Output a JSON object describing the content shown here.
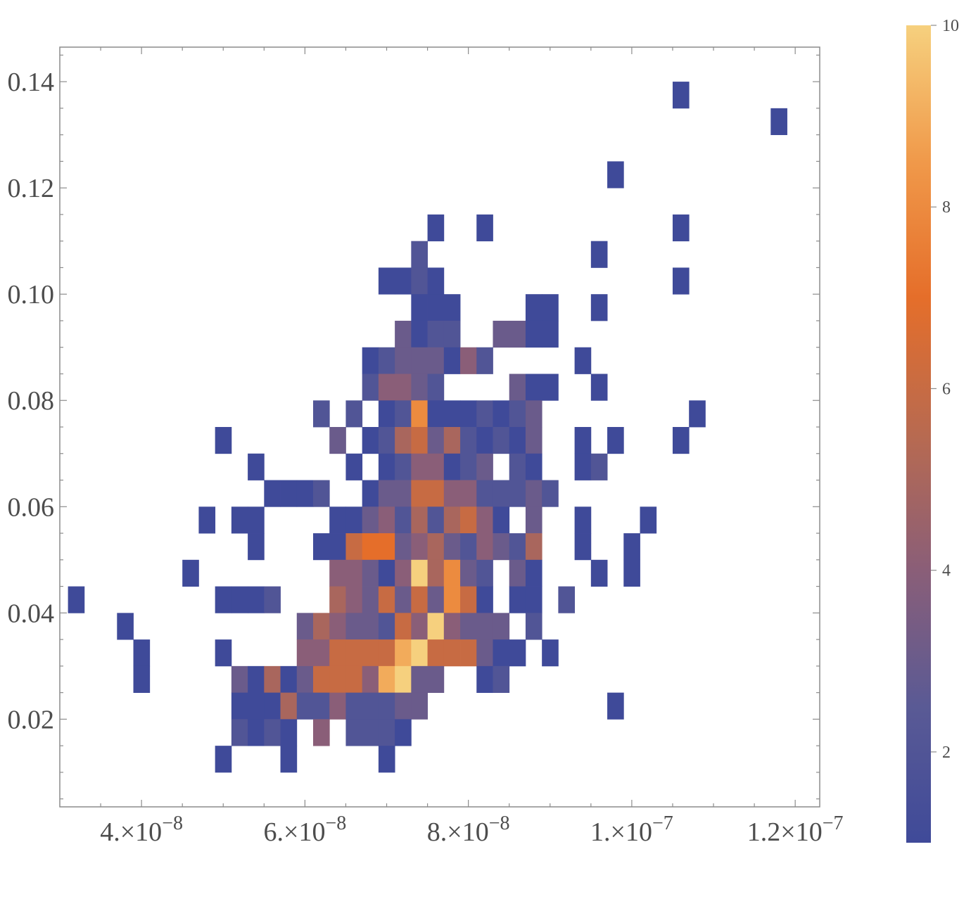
{
  "chart_data": {
    "type": "heatmap",
    "title": "",
    "xlabel": "",
    "ylabel": "",
    "xlim": [
      3e-08,
      1.23e-07
    ],
    "ylim": [
      0.0035,
      0.1465
    ],
    "bin_width": {
      "x": 2e-09,
      "y": 0.005
    },
    "x_ticks": [
      4e-08,
      6e-08,
      8e-08,
      1e-07,
      1.2e-07
    ],
    "x_tick_labels": [
      {
        "mantissa": "4.",
        "exp": "-8"
      },
      {
        "mantissa": "6.",
        "exp": "-8"
      },
      {
        "mantissa": "8.",
        "exp": "-8"
      },
      {
        "mantissa": "1.",
        "exp": "-7"
      },
      {
        "mantissa": "1.2",
        "exp": "-7"
      }
    ],
    "y_ticks": [
      0.02,
      0.04,
      0.06,
      0.08,
      0.1,
      0.12,
      0.14
    ],
    "y_tick_labels": [
      "0.02",
      "0.04",
      "0.06",
      "0.08",
      "0.10",
      "0.12",
      "0.14"
    ],
    "colorbar": {
      "min": 1,
      "max": 10,
      "ticks": [
        2,
        4,
        6,
        8,
        10
      ],
      "tick_labels": [
        "2",
        "4",
        "6",
        "8",
        "10"
      ],
      "colors": [
        "#3f4a99",
        "#5a5a95",
        "#8a5e78",
        "#b86a50",
        "#e56e2a",
        "#f0994a",
        "#f6d07e"
      ]
    },
    "bins": [
      [
        1.06e-07,
        0.1375,
        1
      ],
      [
        1.18e-07,
        0.1325,
        1
      ],
      [
        9.8e-08,
        0.1225,
        1
      ],
      [
        8.2e-08,
        0.1125,
        1
      ],
      [
        1.06e-07,
        0.1125,
        1
      ],
      [
        7.6e-08,
        0.1125,
        1
      ],
      [
        7.4e-08,
        0.1075,
        2
      ],
      [
        9.6e-08,
        0.1075,
        1
      ],
      [
        7e-08,
        0.1025,
        1
      ],
      [
        7.2e-08,
        0.1025,
        1
      ],
      [
        7.4e-08,
        0.1025,
        2
      ],
      [
        7.6e-08,
        0.1025,
        1
      ],
      [
        1.06e-07,
        0.1025,
        1
      ],
      [
        7.4e-08,
        0.0975,
        1
      ],
      [
        7.6e-08,
        0.0975,
        1
      ],
      [
        7.8e-08,
        0.0975,
        1
      ],
      [
        8.8e-08,
        0.0975,
        1
      ],
      [
        9e-08,
        0.0975,
        1
      ],
      [
        9.6e-08,
        0.0975,
        1
      ],
      [
        7.2e-08,
        0.0925,
        3
      ],
      [
        7.4e-08,
        0.0925,
        1
      ],
      [
        7.6e-08,
        0.0925,
        2
      ],
      [
        7.8e-08,
        0.0925,
        2
      ],
      [
        8.4e-08,
        0.0925,
        3
      ],
      [
        8.6e-08,
        0.0925,
        3
      ],
      [
        8.8e-08,
        0.0925,
        1
      ],
      [
        9e-08,
        0.0925,
        1
      ],
      [
        6.8e-08,
        0.0875,
        1
      ],
      [
        7e-08,
        0.0875,
        2
      ],
      [
        7.2e-08,
        0.0875,
        3
      ],
      [
        7.4e-08,
        0.0875,
        3
      ],
      [
        7.6e-08,
        0.0875,
        3
      ],
      [
        7.8e-08,
        0.0875,
        1
      ],
      [
        8e-08,
        0.0875,
        4
      ],
      [
        8.2e-08,
        0.0875,
        2
      ],
      [
        9.4e-08,
        0.0875,
        1
      ],
      [
        6.8e-08,
        0.0825,
        2
      ],
      [
        7e-08,
        0.0825,
        4
      ],
      [
        7.2e-08,
        0.0825,
        4
      ],
      [
        7.4e-08,
        0.0825,
        3
      ],
      [
        7.6e-08,
        0.0825,
        2
      ],
      [
        8.6e-08,
        0.0825,
        3
      ],
      [
        8.8e-08,
        0.0825,
        1
      ],
      [
        9e-08,
        0.0825,
        1
      ],
      [
        9.6e-08,
        0.0825,
        1
      ],
      [
        6.2e-08,
        0.0775,
        2
      ],
      [
        6.6e-08,
        0.0775,
        2
      ],
      [
        7e-08,
        0.0775,
        1
      ],
      [
        7.2e-08,
        0.0775,
        2
      ],
      [
        7.4e-08,
        0.0775,
        8
      ],
      [
        7.6e-08,
        0.0775,
        1
      ],
      [
        7.8e-08,
        0.0775,
        1
      ],
      [
        8e-08,
        0.0775,
        1
      ],
      [
        8.2e-08,
        0.0775,
        2
      ],
      [
        8.4e-08,
        0.0775,
        1
      ],
      [
        8.6e-08,
        0.0775,
        2
      ],
      [
        8.8e-08,
        0.0775,
        3
      ],
      [
        1.08e-07,
        0.0775,
        1
      ],
      [
        5e-08,
        0.0725,
        1
      ],
      [
        6.4e-08,
        0.0725,
        3
      ],
      [
        6.8e-08,
        0.0725,
        1
      ],
      [
        7e-08,
        0.0725,
        2
      ],
      [
        7.2e-08,
        0.0725,
        5
      ],
      [
        7.4e-08,
        0.0725,
        6
      ],
      [
        7.6e-08,
        0.0725,
        3
      ],
      [
        7.8e-08,
        0.0725,
        5
      ],
      [
        8e-08,
        0.0725,
        2
      ],
      [
        8.2e-08,
        0.0725,
        1
      ],
      [
        8.4e-08,
        0.0725,
        2
      ],
      [
        8.6e-08,
        0.0725,
        1
      ],
      [
        8.8e-08,
        0.0725,
        3
      ],
      [
        9.4e-08,
        0.0725,
        1
      ],
      [
        9.8e-08,
        0.0725,
        1
      ],
      [
        1.06e-07,
        0.0725,
        1
      ],
      [
        5.4e-08,
        0.0675,
        1
      ],
      [
        6.6e-08,
        0.0675,
        1
      ],
      [
        7e-08,
        0.0675,
        1
      ],
      [
        7.2e-08,
        0.0675,
        2
      ],
      [
        7.4e-08,
        0.0675,
        4
      ],
      [
        7.6e-08,
        0.0675,
        4
      ],
      [
        7.8e-08,
        0.0675,
        1
      ],
      [
        8e-08,
        0.0675,
        2
      ],
      [
        8.2e-08,
        0.0675,
        3
      ],
      [
        8.6e-08,
        0.0675,
        2
      ],
      [
        8.8e-08,
        0.0675,
        1
      ],
      [
        9.4e-08,
        0.0675,
        1
      ],
      [
        9.6e-08,
        0.0675,
        2
      ],
      [
        5.6e-08,
        0.0625,
        1
      ],
      [
        5.8e-08,
        0.0625,
        1
      ],
      [
        6e-08,
        0.0625,
        1
      ],
      [
        6.2e-08,
        0.0625,
        2
      ],
      [
        6.8e-08,
        0.0625,
        1
      ],
      [
        7e-08,
        0.0625,
        3
      ],
      [
        7.2e-08,
        0.0625,
        3
      ],
      [
        7.4e-08,
        0.0625,
        6
      ],
      [
        7.6e-08,
        0.0625,
        6
      ],
      [
        7.8e-08,
        0.0625,
        4
      ],
      [
        8e-08,
        0.0625,
        4
      ],
      [
        8.2e-08,
        0.0625,
        2
      ],
      [
        8.4e-08,
        0.0625,
        2
      ],
      [
        8.6e-08,
        0.0625,
        2
      ],
      [
        8.8e-08,
        0.0625,
        3
      ],
      [
        9e-08,
        0.0625,
        2
      ],
      [
        4.8e-08,
        0.0575,
        1
      ],
      [
        5.2e-08,
        0.0575,
        1
      ],
      [
        5.4e-08,
        0.0575,
        1
      ],
      [
        6.4e-08,
        0.0575,
        1
      ],
      [
        6.6e-08,
        0.0575,
        1
      ],
      [
        6.8e-08,
        0.0575,
        3
      ],
      [
        7e-08,
        0.0575,
        4
      ],
      [
        7.2e-08,
        0.0575,
        2
      ],
      [
        7.4e-08,
        0.0575,
        5
      ],
      [
        7.6e-08,
        0.0575,
        2
      ],
      [
        7.8e-08,
        0.0575,
        5
      ],
      [
        8e-08,
        0.0575,
        6
      ],
      [
        8.2e-08,
        0.0575,
        4
      ],
      [
        8.4e-08,
        0.0575,
        1
      ],
      [
        8.8e-08,
        0.0575,
        3
      ],
      [
        9.4e-08,
        0.0575,
        1
      ],
      [
        1.02e-07,
        0.0575,
        1
      ],
      [
        5.4e-08,
        0.0525,
        1
      ],
      [
        6.2e-08,
        0.0525,
        1
      ],
      [
        6.4e-08,
        0.0525,
        1
      ],
      [
        6.6e-08,
        0.0525,
        6
      ],
      [
        6.8e-08,
        0.0525,
        7
      ],
      [
        7e-08,
        0.0525,
        7
      ],
      [
        7.2e-08,
        0.0525,
        3
      ],
      [
        7.4e-08,
        0.0525,
        4
      ],
      [
        7.6e-08,
        0.0525,
        5
      ],
      [
        7.8e-08,
        0.0525,
        3
      ],
      [
        8e-08,
        0.0525,
        2
      ],
      [
        8.2e-08,
        0.0525,
        4
      ],
      [
        8.4e-08,
        0.0525,
        3
      ],
      [
        8.6e-08,
        0.0525,
        2
      ],
      [
        8.8e-08,
        0.0525,
        5
      ],
      [
        9.4e-08,
        0.0525,
        1
      ],
      [
        1e-07,
        0.0525,
        1
      ],
      [
        4.6e-08,
        0.0475,
        1
      ],
      [
        6.4e-08,
        0.0475,
        4
      ],
      [
        6.6e-08,
        0.0475,
        4
      ],
      [
        6.8e-08,
        0.0475,
        3
      ],
      [
        7e-08,
        0.0475,
        1
      ],
      [
        7.2e-08,
        0.0475,
        4
      ],
      [
        7.4e-08,
        0.0475,
        10
      ],
      [
        7.6e-08,
        0.0475,
        5
      ],
      [
        7.8e-08,
        0.0475,
        8
      ],
      [
        8e-08,
        0.0475,
        3
      ],
      [
        8.2e-08,
        0.0475,
        2
      ],
      [
        8.6e-08,
        0.0475,
        3
      ],
      [
        8.8e-08,
        0.0475,
        1
      ],
      [
        9.6e-08,
        0.0475,
        1
      ],
      [
        1e-07,
        0.0475,
        1
      ],
      [
        3.2e-08,
        0.0425,
        1
      ],
      [
        5e-08,
        0.0425,
        1
      ],
      [
        5.2e-08,
        0.0425,
        1
      ],
      [
        5.4e-08,
        0.0425,
        1
      ],
      [
        5.6e-08,
        0.0425,
        2
      ],
      [
        6.4e-08,
        0.0425,
        5
      ],
      [
        6.6e-08,
        0.0425,
        4
      ],
      [
        6.8e-08,
        0.0425,
        3
      ],
      [
        7e-08,
        0.0425,
        6
      ],
      [
        7.2e-08,
        0.0425,
        3
      ],
      [
        7.4e-08,
        0.0425,
        6
      ],
      [
        7.6e-08,
        0.0425,
        3
      ],
      [
        7.8e-08,
        0.0425,
        8
      ],
      [
        8e-08,
        0.0425,
        6
      ],
      [
        8.2e-08,
        0.0425,
        1
      ],
      [
        8.6e-08,
        0.0425,
        1
      ],
      [
        8.8e-08,
        0.0425,
        1
      ],
      [
        9.2e-08,
        0.0425,
        2
      ],
      [
        3.8e-08,
        0.0375,
        1
      ],
      [
        6e-08,
        0.0375,
        3
      ],
      [
        6.2e-08,
        0.0375,
        5
      ],
      [
        6.4e-08,
        0.0375,
        4
      ],
      [
        6.6e-08,
        0.0375,
        3
      ],
      [
        6.8e-08,
        0.0375,
        3
      ],
      [
        7e-08,
        0.0375,
        2
      ],
      [
        7.2e-08,
        0.0375,
        6
      ],
      [
        7.4e-08,
        0.0375,
        4
      ],
      [
        7.6e-08,
        0.0375,
        10
      ],
      [
        7.8e-08,
        0.0375,
        4
      ],
      [
        8e-08,
        0.0375,
        3
      ],
      [
        8.2e-08,
        0.0375,
        3
      ],
      [
        8.4e-08,
        0.0375,
        3
      ],
      [
        8.8e-08,
        0.0375,
        2
      ],
      [
        4e-08,
        0.0325,
        1
      ],
      [
        5e-08,
        0.0325,
        1
      ],
      [
        6e-08,
        0.0325,
        4
      ],
      [
        6.2e-08,
        0.0325,
        4
      ],
      [
        6.4e-08,
        0.0325,
        6
      ],
      [
        6.6e-08,
        0.0325,
        6
      ],
      [
        6.8e-08,
        0.0325,
        6
      ],
      [
        7e-08,
        0.0325,
        6
      ],
      [
        7.2e-08,
        0.0325,
        9
      ],
      [
        7.4e-08,
        0.0325,
        10
      ],
      [
        7.6e-08,
        0.0325,
        6
      ],
      [
        7.8e-08,
        0.0325,
        6
      ],
      [
        8e-08,
        0.0325,
        6
      ],
      [
        8.2e-08,
        0.0325,
        3
      ],
      [
        8.4e-08,
        0.0325,
        1
      ],
      [
        8.6e-08,
        0.0325,
        1
      ],
      [
        9e-08,
        0.0325,
        1
      ],
      [
        4e-08,
        0.0275,
        1
      ],
      [
        5.2e-08,
        0.0275,
        3
      ],
      [
        5.4e-08,
        0.0275,
        1
      ],
      [
        5.6e-08,
        0.0275,
        5
      ],
      [
        5.8e-08,
        0.0275,
        1
      ],
      [
        6e-08,
        0.0275,
        3
      ],
      [
        6.2e-08,
        0.0275,
        6
      ],
      [
        6.4e-08,
        0.0275,
        6
      ],
      [
        6.6e-08,
        0.0275,
        6
      ],
      [
        6.8e-08,
        0.0275,
        4
      ],
      [
        7e-08,
        0.0275,
        9
      ],
      [
        7.2e-08,
        0.0275,
        10
      ],
      [
        7.4e-08,
        0.0275,
        3
      ],
      [
        7.6e-08,
        0.0275,
        3
      ],
      [
        8.2e-08,
        0.0275,
        1
      ],
      [
        8.4e-08,
        0.0275,
        2
      ],
      [
        5.2e-08,
        0.0225,
        1
      ],
      [
        5.4e-08,
        0.0225,
        1
      ],
      [
        5.6e-08,
        0.0225,
        1
      ],
      [
        5.8e-08,
        0.0225,
        5
      ],
      [
        6e-08,
        0.0225,
        2
      ],
      [
        6.2e-08,
        0.0225,
        2
      ],
      [
        6.4e-08,
        0.0225,
        4
      ],
      [
        6.6e-08,
        0.0225,
        2
      ],
      [
        6.8e-08,
        0.0225,
        2
      ],
      [
        7e-08,
        0.0225,
        2
      ],
      [
        7.2e-08,
        0.0225,
        3
      ],
      [
        7.4e-08,
        0.0225,
        3
      ],
      [
        9.8e-08,
        0.0225,
        1
      ],
      [
        5.2e-08,
        0.0175,
        2
      ],
      [
        5.4e-08,
        0.0175,
        1
      ],
      [
        5.6e-08,
        0.0175,
        2
      ],
      [
        5.8e-08,
        0.0175,
        1
      ],
      [
        6.2e-08,
        0.0175,
        4
      ],
      [
        6.6e-08,
        0.0175,
        2
      ],
      [
        6.8e-08,
        0.0175,
        2
      ],
      [
        7e-08,
        0.0175,
        2
      ],
      [
        7.2e-08,
        0.0175,
        1
      ],
      [
        5e-08,
        0.0125,
        1
      ],
      [
        5.8e-08,
        0.0125,
        1
      ],
      [
        7e-08,
        0.0125,
        1
      ]
    ]
  }
}
